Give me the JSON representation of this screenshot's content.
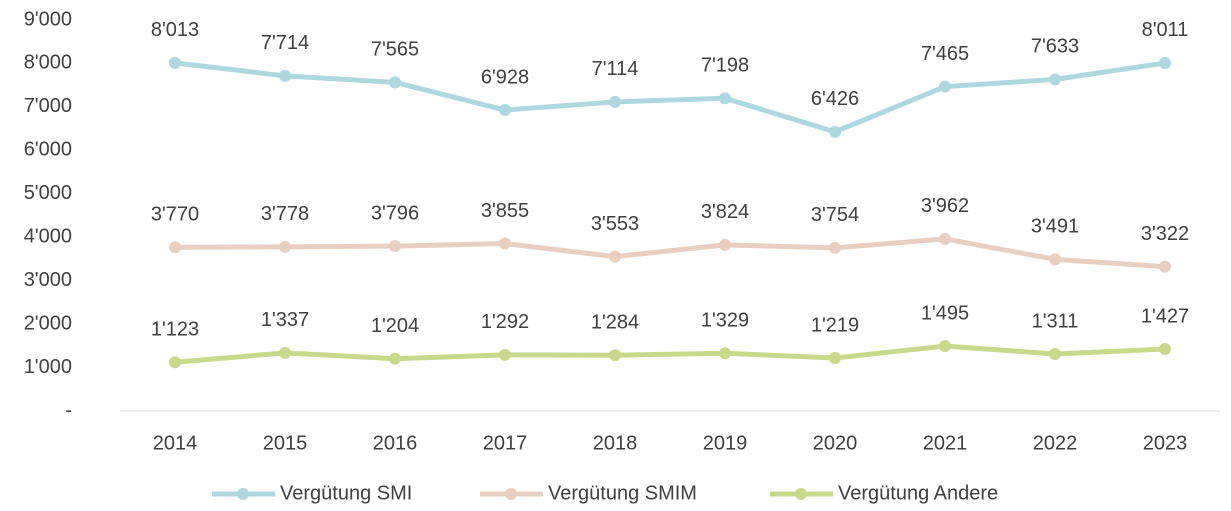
{
  "chart_data": {
    "type": "line",
    "categories": [
      "2014",
      "2015",
      "2016",
      "2017",
      "2018",
      "2019",
      "2020",
      "2021",
      "2022",
      "2023"
    ],
    "series": [
      {
        "name": "Vergütung SMI",
        "color": "#add8e0",
        "values": [
          8013,
          7714,
          7565,
          6928,
          7114,
          7198,
          6426,
          7465,
          7633,
          8011
        ],
        "value_labels": [
          "8'013",
          "7'714",
          "7'565",
          "6'928",
          "7'114",
          "7'198",
          "6'426",
          "7'465",
          "7'633",
          "8'011"
        ]
      },
      {
        "name": "Vergütung SMIM",
        "color": "#e8cfc0",
        "values": [
          3770,
          3778,
          3796,
          3855,
          3553,
          3824,
          3754,
          3962,
          3491,
          3322
        ],
        "value_labels": [
          "3'770",
          "3'778",
          "3'796",
          "3'855",
          "3'553",
          "3'824",
          "3'754",
          "3'962",
          "3'491",
          "3'322"
        ]
      },
      {
        "name": "Vergütung Andere",
        "color": "#c9d98c",
        "values": [
          1123,
          1337,
          1204,
          1292,
          1284,
          1329,
          1219,
          1495,
          1311,
          1427
        ],
        "value_labels": [
          "1'123",
          "1'337",
          "1'204",
          "1'292",
          "1'284",
          "1'329",
          "1'219",
          "1'495",
          "1'311",
          "1'427"
        ]
      }
    ],
    "ylim": [
      0,
      9000
    ],
    "yticks": [
      {
        "value": 0,
        "label": "-"
      },
      {
        "value": 1000,
        "label": "1'000"
      },
      {
        "value": 2000,
        "label": "2'000"
      },
      {
        "value": 3000,
        "label": "3'000"
      },
      {
        "value": 4000,
        "label": "4'000"
      },
      {
        "value": 5000,
        "label": "5'000"
      },
      {
        "value": 6000,
        "label": "6'000"
      },
      {
        "value": 7000,
        "label": "7'000"
      },
      {
        "value": 8000,
        "label": "8'000"
      },
      {
        "value": 9000,
        "label": "9'000"
      }
    ],
    "grid": false,
    "legend": "bottom"
  }
}
